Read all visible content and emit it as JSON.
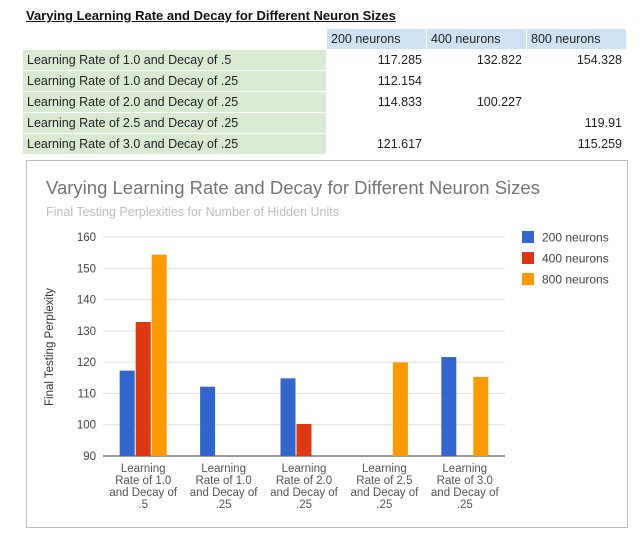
{
  "sheet": {
    "title": "Varying Learning Rate and Decay for Different Neuron Sizes",
    "columns": [
      "200 neurons",
      "400 neurons",
      "800 neurons"
    ],
    "rows": [
      {
        "label": "Learning Rate of 1.0 and Decay of .5",
        "values": [
          "117.285",
          "132.822",
          "154.328"
        ]
      },
      {
        "label": "Learning Rate of 1.0 and Decay of .25",
        "values": [
          "112.154",
          "",
          ""
        ]
      },
      {
        "label": "Learning Rate of 2.0 and Decay of .25",
        "values": [
          "114.833",
          "100.227",
          ""
        ]
      },
      {
        "label": "Learning Rate of 2.5 and Decay of .25",
        "values": [
          "",
          "",
          "119.91"
        ]
      },
      {
        "label": "Learning Rate of 3.0 and Decay of .25",
        "values": [
          "121.617",
          "",
          "115.259"
        ]
      }
    ]
  },
  "chart_data": {
    "type": "bar",
    "title": "Varying Learning Rate and Decay for Different Neuron Sizes",
    "subtitle": "Final Testing Perplexities for Number of Hidden Units",
    "ylabel": "Final Testing Perplexity",
    "xlabel": "",
    "categories": [
      "Learning Rate of 1.0 and Decay of .5",
      "Learning Rate of 1.0 and Decay of .25",
      "Learning Rate of 2.0 and Decay of .25",
      "Learning Rate of 2.5 and Decay of .25",
      "Learning Rate of 3.0 and Decay of .25"
    ],
    "category_lines": [
      [
        "Learning",
        "Rate of 1.0",
        "and Decay of",
        ".5"
      ],
      [
        "Learning",
        "Rate of 1.0",
        "and Decay of",
        ".25"
      ],
      [
        "Learning",
        "Rate of 2.0",
        "and Decay of",
        ".25"
      ],
      [
        "Learning",
        "Rate of 2.5",
        "and Decay of",
        ".25"
      ],
      [
        "Learning",
        "Rate of 3.0",
        "and Decay of",
        ".25"
      ]
    ],
    "series": [
      {
        "name": "200 neurons",
        "color": "#3366cc",
        "values": [
          117.285,
          112.154,
          114.833,
          null,
          121.617
        ]
      },
      {
        "name": "400 neurons",
        "color": "#dc3912",
        "values": [
          132.822,
          null,
          100.227,
          null,
          null
        ]
      },
      {
        "name": "800 neurons",
        "color": "#ff9900",
        "values": [
          154.328,
          null,
          null,
          119.91,
          115.259
        ]
      }
    ],
    "ylim": [
      90,
      160
    ],
    "yticks": [
      90,
      100,
      110,
      120,
      130,
      140,
      150,
      160
    ],
    "grid": true,
    "legend": "right"
  }
}
